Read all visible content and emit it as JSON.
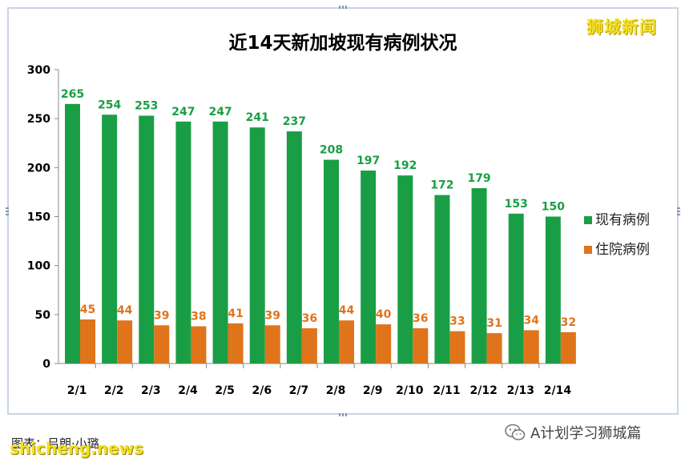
{
  "brand": "狮城新闻",
  "source": "图表：吕朗·小璐",
  "watermark": "shicheng.news",
  "account": "A计划学习狮城篇",
  "colors": {
    "current": "#1a9e45",
    "hospitalized": "#e0741a"
  },
  "chart_data": {
    "type": "bar",
    "title": "近14天新加坡现有病例状况",
    "categories": [
      "2/1",
      "2/2",
      "2/3",
      "2/4",
      "2/5",
      "2/6",
      "2/7",
      "2/8",
      "2/9",
      "2/10",
      "2/11",
      "2/12",
      "2/13",
      "2/14"
    ],
    "series": [
      {
        "name": "现有病例",
        "values": [
          265,
          254,
          253,
          247,
          247,
          241,
          237,
          208,
          197,
          192,
          172,
          179,
          153,
          150
        ]
      },
      {
        "name": "住院病例",
        "values": [
          45,
          44,
          39,
          38,
          41,
          39,
          36,
          44,
          40,
          36,
          33,
          31,
          34,
          32
        ]
      }
    ],
    "yticks": [
      0,
      50,
      100,
      150,
      200,
      250,
      300
    ],
    "ylim": [
      0,
      300
    ],
    "xlabel": "",
    "ylabel": "",
    "grid": false,
    "legend": "right"
  }
}
